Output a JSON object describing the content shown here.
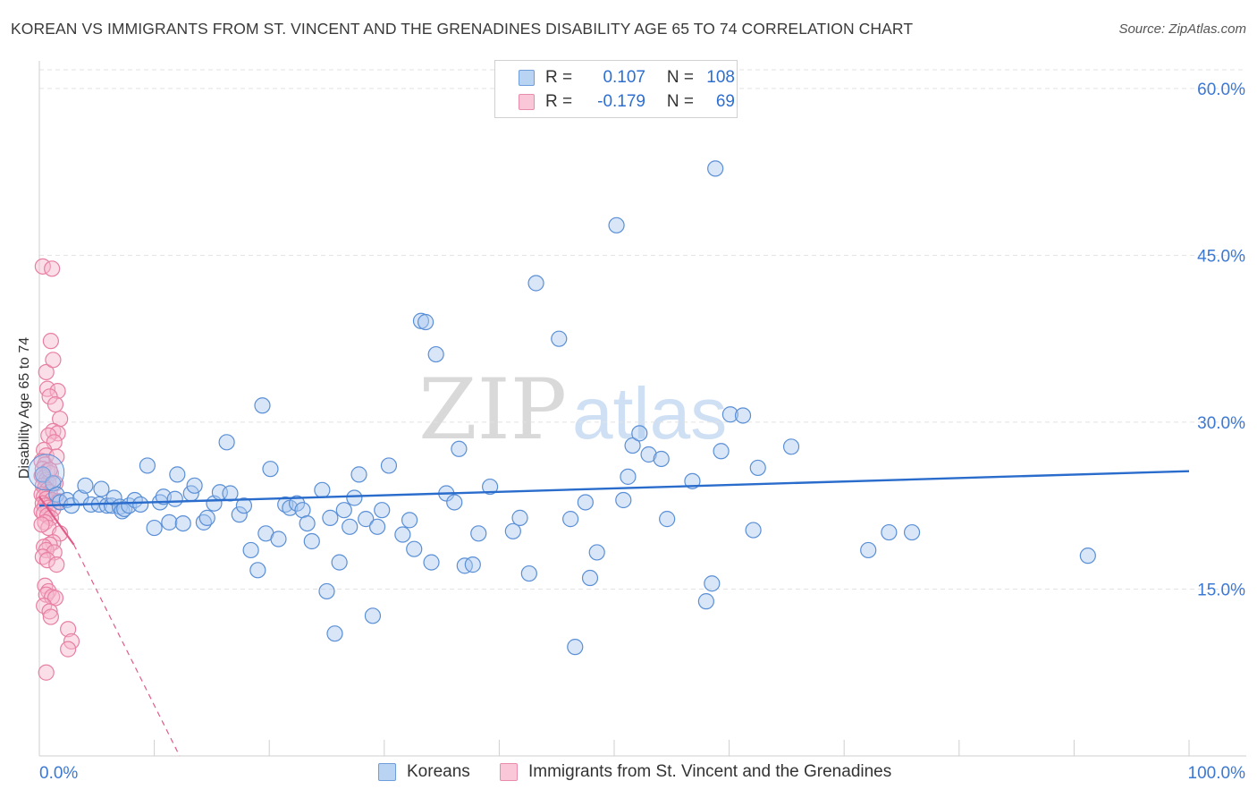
{
  "title": "KOREAN VS IMMIGRANTS FROM ST. VINCENT AND THE GRENADINES DISABILITY AGE 65 TO 74 CORRELATION CHART",
  "source": "Source: ZipAtlas.com",
  "watermark": {
    "zip": "ZIP",
    "atlas": "atlas"
  },
  "colors": {
    "blue_fill": "#a9c8f0",
    "blue_stroke": "#5a8fd6",
    "blue_line": "#2a6ccc",
    "pink_fill": "#f6b8cb",
    "pink_stroke": "#e77fa2",
    "pink_line": "#e05b8a",
    "tick_text": "#3b78d4",
    "grid": "#e2e2e2"
  },
  "legend": {
    "rows": [
      {
        "r_label": "R =",
        "r_value": "0.107",
        "n_label": "N =",
        "n_value": "108"
      },
      {
        "r_label": "R =",
        "r_value": "-0.179",
        "n_label": "N =",
        "n_value": "69"
      }
    ]
  },
  "bottom_legend": {
    "items": [
      {
        "label": "Koreans"
      },
      {
        "label": "Immigrants from St. Vincent and the Grenadines"
      }
    ]
  },
  "chart_data": {
    "type": "scatter",
    "xlabel": "",
    "ylabel": "Disability Age 65 to 74",
    "xlim": [
      0,
      100
    ],
    "ylim": [
      0,
      62
    ],
    "x_tick_labels": [
      "0.0%",
      "100.0%"
    ],
    "y_ticks": [
      15,
      30,
      45,
      60
    ],
    "y_tick_labels": [
      "15.0%",
      "30.0%",
      "45.0%",
      "60.0%"
    ],
    "grid": true,
    "legend_position": "top-center",
    "series": [
      {
        "name": "Koreans",
        "trend": {
          "x": [
            0,
            100
          ],
          "y": [
            22.5,
            25.6
          ]
        },
        "points": [
          [
            0.3,
            25.3
          ],
          [
            1.2,
            24.5
          ],
          [
            1.5,
            23.5
          ],
          [
            1.8,
            22.8
          ],
          [
            2.4,
            23.0
          ],
          [
            2.8,
            22.5
          ],
          [
            3.6,
            23.2
          ],
          [
            4.0,
            24.3
          ],
          [
            4.5,
            22.6
          ],
          [
            5.2,
            22.6
          ],
          [
            5.4,
            24.0
          ],
          [
            5.9,
            22.5
          ],
          [
            6.3,
            22.5
          ],
          [
            6.5,
            23.2
          ],
          [
            7.0,
            22.4
          ],
          [
            7.2,
            22.0
          ],
          [
            7.4,
            22.2
          ],
          [
            7.8,
            22.5
          ],
          [
            8.3,
            23.0
          ],
          [
            8.8,
            22.6
          ],
          [
            9.4,
            26.1
          ],
          [
            10.0,
            20.5
          ],
          [
            10.5,
            22.8
          ],
          [
            10.8,
            23.3
          ],
          [
            11.3,
            21.0
          ],
          [
            11.8,
            23.1
          ],
          [
            12.0,
            25.3
          ],
          [
            12.5,
            20.9
          ],
          [
            13.2,
            23.6
          ],
          [
            13.5,
            24.3
          ],
          [
            14.3,
            21.0
          ],
          [
            14.6,
            21.4
          ],
          [
            15.2,
            22.7
          ],
          [
            15.7,
            23.7
          ],
          [
            16.3,
            28.2
          ],
          [
            16.6,
            23.6
          ],
          [
            17.4,
            21.7
          ],
          [
            17.8,
            22.5
          ],
          [
            18.4,
            18.5
          ],
          [
            19.0,
            16.7
          ],
          [
            19.4,
            31.5
          ],
          [
            19.7,
            20.0
          ],
          [
            20.1,
            25.8
          ],
          [
            20.8,
            19.5
          ],
          [
            21.4,
            22.6
          ],
          [
            21.8,
            22.3
          ],
          [
            22.4,
            22.7
          ],
          [
            22.9,
            22.1
          ],
          [
            23.3,
            20.9
          ],
          [
            23.7,
            19.3
          ],
          [
            24.6,
            23.9
          ],
          [
            25.0,
            14.8
          ],
          [
            25.3,
            21.4
          ],
          [
            25.7,
            11.0
          ],
          [
            26.1,
            17.4
          ],
          [
            26.5,
            22.1
          ],
          [
            27.0,
            20.6
          ],
          [
            27.4,
            23.2
          ],
          [
            27.8,
            25.3
          ],
          [
            28.4,
            21.3
          ],
          [
            29.0,
            12.6
          ],
          [
            29.4,
            20.6
          ],
          [
            29.8,
            22.1
          ],
          [
            30.4,
            26.1
          ],
          [
            31.6,
            19.9
          ],
          [
            32.2,
            21.2
          ],
          [
            32.6,
            18.6
          ],
          [
            33.2,
            39.1
          ],
          [
            33.6,
            39.0
          ],
          [
            34.1,
            17.4
          ],
          [
            34.5,
            36.1
          ],
          [
            35.4,
            23.6
          ],
          [
            36.1,
            22.8
          ],
          [
            36.5,
            27.6
          ],
          [
            37.0,
            17.1
          ],
          [
            37.7,
            17.2
          ],
          [
            38.2,
            20.0
          ],
          [
            39.2,
            24.2
          ],
          [
            41.2,
            20.2
          ],
          [
            41.8,
            21.4
          ],
          [
            42.6,
            16.4
          ],
          [
            43.2,
            42.5
          ],
          [
            45.2,
            37.5
          ],
          [
            46.2,
            21.3
          ],
          [
            46.6,
            9.8
          ],
          [
            47.5,
            22.8
          ],
          [
            47.9,
            16.0
          ],
          [
            48.5,
            18.3
          ],
          [
            50.2,
            47.7
          ],
          [
            50.8,
            23.0
          ],
          [
            51.2,
            25.1
          ],
          [
            51.6,
            27.9
          ],
          [
            52.2,
            29.0
          ],
          [
            53.0,
            27.1
          ],
          [
            54.1,
            26.7
          ],
          [
            54.6,
            21.3
          ],
          [
            56.8,
            24.7
          ],
          [
            58.0,
            13.9
          ],
          [
            58.5,
            15.5
          ],
          [
            58.8,
            52.8
          ],
          [
            59.3,
            27.4
          ],
          [
            60.1,
            30.7
          ],
          [
            61.2,
            30.6
          ],
          [
            62.1,
            20.3
          ],
          [
            62.5,
            25.9
          ],
          [
            65.4,
            27.8
          ],
          [
            72.1,
            18.5
          ],
          [
            73.9,
            20.1
          ],
          [
            75.9,
            20.1
          ],
          [
            91.2,
            18.0
          ]
        ]
      },
      {
        "name": "Immigrants from St. Vincent and the Grenadines",
        "trend_solid": {
          "x": [
            0,
            3.0
          ],
          "y": [
            23.3,
            19.0
          ]
        },
        "trend_dashed": {
          "x": [
            3.0,
            12.2
          ],
          "y": [
            19.0,
            0
          ]
        },
        "points": [
          [
            0.3,
            44.0
          ],
          [
            1.1,
            43.8
          ],
          [
            0.6,
            34.5
          ],
          [
            1.2,
            35.6
          ],
          [
            1.0,
            37.3
          ],
          [
            0.7,
            33.0
          ],
          [
            1.6,
            32.8
          ],
          [
            0.9,
            32.3
          ],
          [
            1.4,
            31.6
          ],
          [
            1.8,
            30.3
          ],
          [
            1.2,
            29.2
          ],
          [
            1.6,
            29.0
          ],
          [
            0.8,
            28.8
          ],
          [
            1.3,
            28.2
          ],
          [
            0.4,
            27.5
          ],
          [
            0.6,
            27.0
          ],
          [
            0.2,
            26.5
          ],
          [
            0.5,
            26.2
          ],
          [
            0.3,
            25.8
          ],
          [
            0.7,
            25.6
          ],
          [
            1.0,
            25.4
          ],
          [
            0.2,
            25.2
          ],
          [
            0.4,
            25.0
          ],
          [
            0.6,
            24.8
          ],
          [
            0.8,
            24.6
          ],
          [
            1.4,
            24.5
          ],
          [
            0.3,
            24.3
          ],
          [
            0.5,
            24.1
          ],
          [
            0.7,
            23.9
          ],
          [
            0.9,
            23.7
          ],
          [
            0.2,
            23.5
          ],
          [
            0.4,
            23.3
          ],
          [
            0.6,
            23.1
          ],
          [
            1.1,
            23.0
          ],
          [
            1.7,
            22.9
          ],
          [
            0.3,
            22.7
          ],
          [
            0.5,
            22.5
          ],
          [
            0.8,
            22.3
          ],
          [
            1.2,
            22.2
          ],
          [
            0.2,
            22.0
          ],
          [
            0.4,
            21.8
          ],
          [
            0.7,
            21.6
          ],
          [
            1.0,
            21.4
          ],
          [
            0.5,
            21.0
          ],
          [
            0.8,
            20.5
          ],
          [
            1.8,
            20.0
          ],
          [
            1.2,
            19.2
          ],
          [
            0.9,
            19.0
          ],
          [
            0.4,
            18.8
          ],
          [
            0.6,
            18.5
          ],
          [
            1.3,
            18.3
          ],
          [
            0.3,
            17.9
          ],
          [
            0.7,
            17.6
          ],
          [
            1.5,
            17.2
          ],
          [
            0.5,
            15.3
          ],
          [
            0.8,
            14.8
          ],
          [
            0.6,
            14.5
          ],
          [
            1.1,
            14.3
          ],
          [
            1.4,
            14.2
          ],
          [
            0.4,
            13.5
          ],
          [
            0.9,
            13.0
          ],
          [
            1.0,
            12.5
          ],
          [
            2.5,
            11.4
          ],
          [
            2.8,
            10.3
          ],
          [
            2.5,
            9.6
          ],
          [
            0.6,
            7.5
          ],
          [
            0.9,
            25.7
          ],
          [
            1.5,
            26.9
          ],
          [
            0.2,
            20.8
          ]
        ]
      }
    ]
  }
}
